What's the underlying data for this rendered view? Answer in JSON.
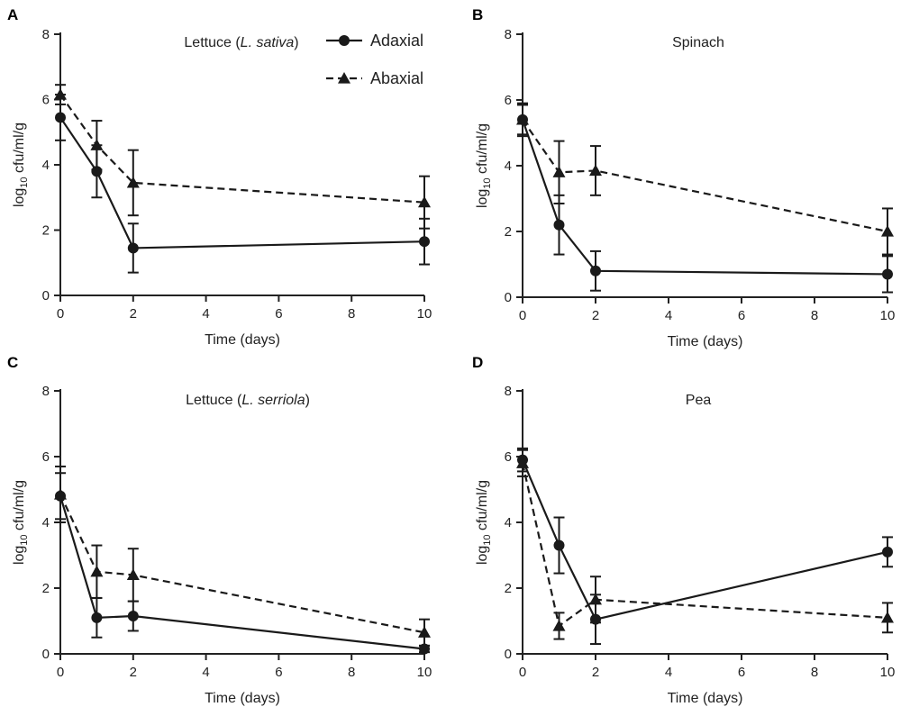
{
  "chart_data": [
    {
      "type": "line",
      "panel_label": "A",
      "title": "Lettuce (",
      "title_italic": "L. sativa",
      "title_end": ")",
      "xlabel": "Time (days)",
      "ylabel_prefix": "log",
      "ylabel_sub": "10",
      "ylabel_suffix": " cfu/ml/g",
      "xlim": [
        0,
        10
      ],
      "ylim": [
        0,
        8
      ],
      "xticks": [
        0,
        2,
        4,
        6,
        8,
        10
      ],
      "yticks": [
        0,
        2,
        4,
        6,
        8
      ],
      "series": [
        {
          "name": "Adaxial",
          "marker": "circle",
          "dashed": false,
          "x": [
            0,
            1,
            2,
            10
          ],
          "y": [
            5.45,
            3.8,
            1.45,
            1.65
          ],
          "err": [
            0.7,
            0.8,
            0.75,
            0.7
          ]
        },
        {
          "name": "Abaxial",
          "marker": "triangle",
          "dashed": true,
          "x": [
            0,
            1,
            2,
            10
          ],
          "y": [
            6.15,
            4.6,
            3.45,
            2.85
          ],
          "err": [
            0.3,
            0.75,
            1.0,
            0.8
          ]
        }
      ],
      "legend": true
    },
    {
      "type": "line",
      "panel_label": "B",
      "title": "Spinach",
      "xlabel": "Time (days)",
      "ylabel_prefix": "log",
      "ylabel_sub": "10",
      "ylabel_suffix": " cfu/ml/g",
      "xlim": [
        0,
        10
      ],
      "ylim": [
        0,
        8
      ],
      "xticks": [
        0,
        2,
        4,
        6,
        8,
        10
      ],
      "yticks": [
        0,
        2,
        4,
        6,
        8
      ],
      "series": [
        {
          "name": "Adaxial",
          "marker": "circle",
          "dashed": false,
          "x": [
            0,
            1,
            2,
            10
          ],
          "y": [
            5.4,
            2.2,
            0.8,
            0.7
          ],
          "err": [
            0.5,
            0.9,
            0.6,
            0.55
          ]
        },
        {
          "name": "Abaxial",
          "marker": "triangle",
          "dashed": true,
          "x": [
            0,
            1,
            2,
            10
          ],
          "y": [
            5.4,
            3.8,
            3.85,
            2.0
          ],
          "err": [
            0.45,
            0.95,
            0.75,
            0.7
          ]
        }
      ],
      "legend": false
    },
    {
      "type": "line",
      "panel_label": "C",
      "title": "Lettuce (",
      "title_italic": "L. serriola",
      "title_end": ")",
      "xlabel": "Time (days)",
      "ylabel_prefix": "log",
      "ylabel_sub": "10",
      "ylabel_suffix": " cfu/ml/g",
      "xlim": [
        0,
        10
      ],
      "ylim": [
        0,
        8
      ],
      "xticks": [
        0,
        2,
        4,
        6,
        8,
        10
      ],
      "yticks": [
        0,
        2,
        4,
        6,
        8
      ],
      "series": [
        {
          "name": "Adaxial",
          "marker": "circle",
          "dashed": false,
          "x": [
            0,
            1,
            2,
            10
          ],
          "y": [
            4.8,
            1.1,
            1.15,
            0.15
          ],
          "err": [
            0.7,
            0.6,
            0.45,
            0.1
          ]
        },
        {
          "name": "Abaxial",
          "marker": "triangle",
          "dashed": true,
          "x": [
            0,
            1,
            2,
            10
          ],
          "y": [
            4.85,
            2.5,
            2.4,
            0.65
          ],
          "err": [
            0.85,
            0.8,
            0.8,
            0.4
          ]
        }
      ],
      "legend": false
    },
    {
      "type": "line",
      "panel_label": "D",
      "title": "Pea",
      "xlabel": "Time (days)",
      "ylabel_prefix": "log",
      "ylabel_sub": "10",
      "ylabel_suffix": " cfu/ml/g",
      "xlim": [
        0,
        10
      ],
      "ylim": [
        0,
        8
      ],
      "xticks": [
        0,
        2,
        4,
        6,
        8,
        10
      ],
      "yticks": [
        0,
        2,
        4,
        6,
        8
      ],
      "series": [
        {
          "name": "Adaxial",
          "marker": "circle",
          "dashed": false,
          "x": [
            0,
            1,
            2,
            10
          ],
          "y": [
            5.9,
            3.3,
            1.05,
            3.1
          ],
          "err": [
            0.35,
            0.85,
            0.75,
            0.45
          ]
        },
        {
          "name": "Abaxial",
          "marker": "triangle",
          "dashed": true,
          "x": [
            0,
            1,
            2,
            10
          ],
          "y": [
            5.8,
            0.85,
            1.65,
            1.1
          ],
          "err": [
            0.4,
            0.4,
            0.7,
            0.45
          ]
        }
      ],
      "legend": false
    }
  ]
}
